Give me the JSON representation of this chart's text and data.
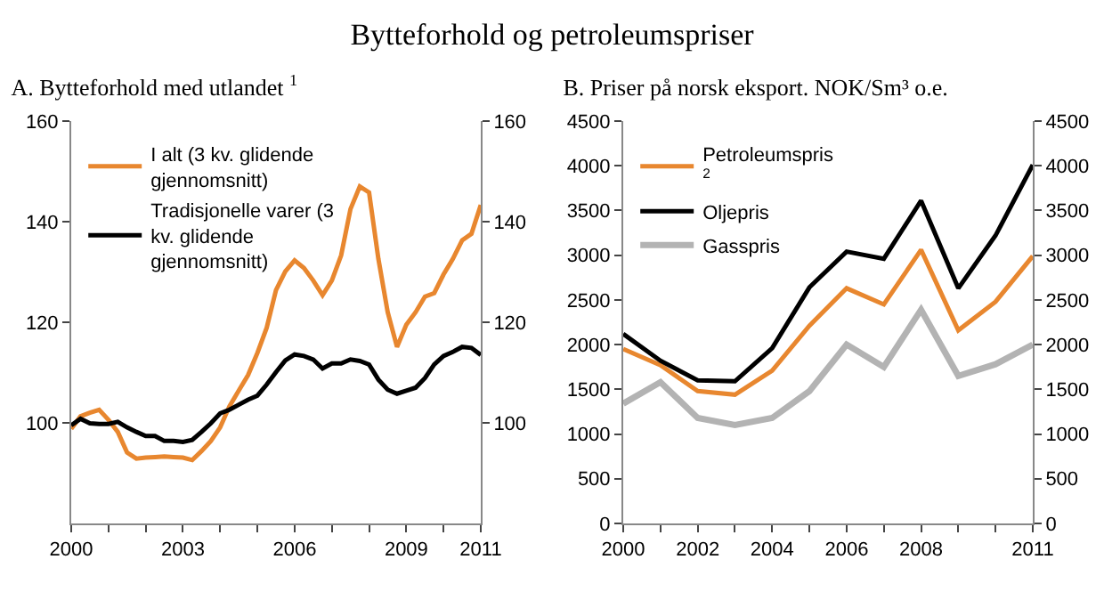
{
  "chart_data": [
    {
      "type": "line",
      "title": "Bytteforhold og petroleumspriser",
      "subtitle": "A. Bytteforhold med utlandet $^{1}$",
      "legend": "top left",
      "grid": false,
      "x": [
        2000,
        2000.25,
        2000.5,
        2000.75,
        2001,
        2001.25,
        2001.5,
        2001.75,
        2002,
        2002.25,
        2002.5,
        2002.75,
        2003,
        2003.25,
        2003.5,
        2003.75,
        2004,
        2004.25,
        2004.5,
        2004.75,
        2005,
        2005.25,
        2005.5,
        2005.75,
        2006,
        2006.25,
        2006.5,
        2006.75,
        2007,
        2007.25,
        2007.5,
        2007.75,
        2008,
        2008.25,
        2008.5,
        2008.75,
        2009,
        2009.25,
        2009.5,
        2009.75,
        2010,
        2010.25,
        2010.5,
        2010.75,
        2011
      ],
      "series": [
        {
          "name": "I alt (3 kv. glidende gjennomsnitt)",
          "color": "#e8872f",
          "values": [
            98.8,
            101.3,
            102,
            102.6,
            100.6,
            98.2,
            94.1,
            92.9,
            93.1,
            93.2,
            93.3,
            93.2,
            93.1,
            92.6,
            94.4,
            96.4,
            99.1,
            103.3,
            106.4,
            109.5,
            113.9,
            118.9,
            126.4,
            130.1,
            132.3,
            130.8,
            128.3,
            125.4,
            128.3,
            133.3,
            142.5,
            147,
            145.8,
            132.6,
            122,
            115.1,
            119.5,
            122,
            125.1,
            125.8,
            129.5,
            132.6,
            136.3,
            137.6,
            143.3
          ]
        },
        {
          "name": "Tradisjonelle varer (3 kv. glidende gjennomsnitt)",
          "color": "#000000",
          "values": [
            99.5,
            100.8,
            99.9,
            99.8,
            99.8,
            100.2,
            99.1,
            98.2,
            97.4,
            97.4,
            96.4,
            96.4,
            96.2,
            96.6,
            98.2,
            99.9,
            101.9,
            102.6,
            103.6,
            104.6,
            105.4,
            107.6,
            110.1,
            112.4,
            113.6,
            113.3,
            112.6,
            110.8,
            111.8,
            111.8,
            112.6,
            112.3,
            111.6,
            108.6,
            106.6,
            105.8,
            106.4,
            107,
            108.9,
            111.6,
            113.3,
            114.1,
            115.1,
            114.9,
            113.5
          ]
        }
      ],
      "xlim": [
        2000,
        2011
      ],
      "xticks": [
        2000,
        {
          "value": 2001,
          "label": null
        },
        {
          "value": 2002,
          "label": null
        },
        2003,
        {
          "value": 2004,
          "label": null
        },
        {
          "value": 2005,
          "label": null
        },
        2006,
        {
          "value": 2007,
          "label": null
        },
        {
          "value": 2008,
          "label": null
        },
        2009,
        {
          "value": 2010,
          "label": null
        },
        2011
      ],
      "ylim": [
        80,
        160
      ],
      "yticks": [
        100,
        120,
        140,
        160
      ],
      "y2lim": [
        80,
        160
      ],
      "y2ticks": [
        100,
        120,
        140,
        160
      ]
    },
    {
      "type": "line",
      "subtitle": "B. Priser på norsk eksport. NOK/Sm³ o.e.",
      "legend": "top left",
      "grid": false,
      "x": [
        2000,
        2001,
        2002,
        2003,
        2004,
        2005,
        2006,
        2007,
        2008,
        2009,
        2010,
        2011
      ],
      "series": [
        {
          "name": "Petroleumspris $^{2}$",
          "color": "#e8872f",
          "values": [
            1950,
            1770,
            1480,
            1440,
            1710,
            2210,
            2630,
            2450,
            3060,
            2160,
            2480,
            2990
          ]
        },
        {
          "name": "Oljepris",
          "color": "#000000",
          "values": [
            2120,
            1820,
            1600,
            1590,
            1960,
            2640,
            3040,
            2960,
            3610,
            2630,
            3220,
            4010
          ]
        },
        {
          "name": "Gasspris",
          "color": "#b3b3b3",
          "values": [
            1340,
            1580,
            1180,
            1100,
            1180,
            1480,
            2000,
            1750,
            2390,
            1650,
            1780,
            2000
          ]
        }
      ],
      "xlim": [
        2000,
        2011
      ],
      "xticks": [
        2000,
        {
          "value": 2001,
          "label": null
        },
        2002,
        {
          "value": 2003,
          "label": null
        },
        2004,
        {
          "value": 2005,
          "label": null
        },
        2006,
        {
          "value": 2007,
          "label": null
        },
        2008,
        {
          "value": 2009,
          "label": null
        },
        {
          "value": 2010,
          "label": null
        },
        2011
      ],
      "ylim": [
        0,
        4500
      ],
      "yticks": [
        0,
        500,
        1000,
        1500,
        2000,
        2500,
        3000,
        3500,
        4000,
        4500
      ],
      "y2lim": [
        0,
        4500
      ],
      "y2ticks": [
        0,
        500,
        1000,
        1500,
        2000,
        2500,
        3000,
        3500,
        4000,
        4500
      ]
    }
  ]
}
